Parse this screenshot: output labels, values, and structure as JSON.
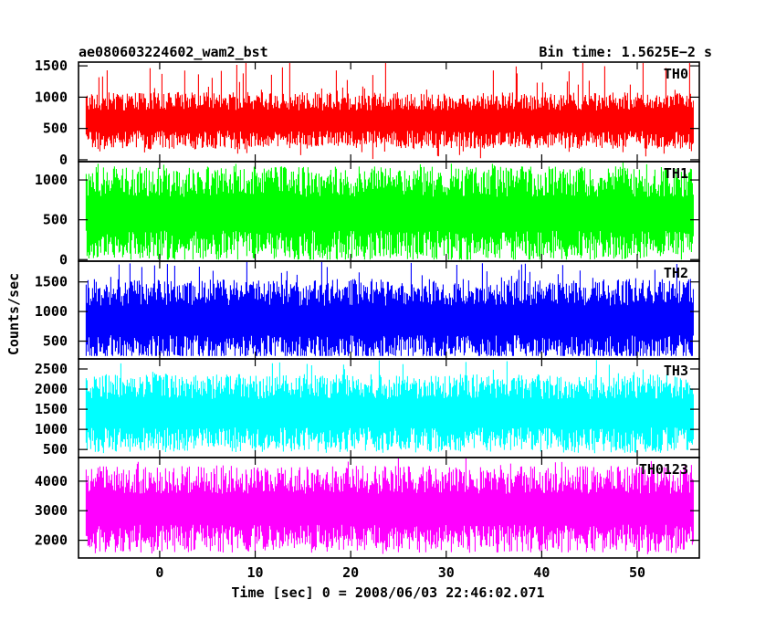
{
  "chart_data": {
    "type": "line",
    "title_left": "ae080603224602_wam2_bst",
    "title_right": "Bin time: 1.5625E−2 s",
    "ylabel": "Counts/sec",
    "xlabel": "Time [sec] 0 = 2008/06/03 22:46:02.071",
    "xlim": [
      -8.5,
      56.5
    ],
    "x_data_range": [
      -7.7,
      55.9
    ],
    "bin_time": 0.015625,
    "x_ticks": [
      0,
      10,
      20,
      30,
      40,
      50
    ],
    "x_tick_labels": [
      "0",
      "10",
      "20",
      "30",
      "40",
      "50"
    ],
    "grid": false,
    "panels": [
      {
        "name": "TH0",
        "color": "#ff0000",
        "ylim": [
          -30,
          1560
        ],
        "y_ticks": [
          0,
          500,
          1000,
          1500
        ],
        "y_tick_labels": [
          "0",
          "500",
          "1000",
          "1500"
        ],
        "typical_low": 300,
        "typical_high": 950,
        "min": 0,
        "max": 1560,
        "mean": 600
      },
      {
        "name": "TH1",
        "color": "#00ff00",
        "ylim": [
          -20,
          1230
        ],
        "y_ticks": [
          0,
          500,
          1000
        ],
        "y_tick_labels": [
          "0",
          "500",
          "1000"
        ],
        "typical_low": 150,
        "typical_high": 1000,
        "min": 0,
        "max": 1230,
        "mean": 550
      },
      {
        "name": "TH2",
        "color": "#0000ff",
        "ylim": [
          200,
          1850
        ],
        "y_ticks": [
          500,
          1000,
          1500
        ],
        "y_tick_labels": [
          "500",
          "1000",
          "1500"
        ],
        "typical_low": 350,
        "typical_high": 1350,
        "min": 250,
        "max": 1850,
        "mean": 800
      },
      {
        "name": "TH3",
        "color": "#00ffff",
        "ylim": [
          300,
          2750
        ],
        "y_ticks": [
          500,
          1000,
          1500,
          2000,
          2500
        ],
        "y_tick_labels": [
          "500",
          "1000",
          "1500",
          "2000",
          "2500"
        ],
        "typical_low": 700,
        "typical_high": 2100,
        "min": 400,
        "max": 2750,
        "mean": 1350
      },
      {
        "name": "TH0123",
        "color": "#ff00ff",
        "ylim": [
          1400,
          4800
        ],
        "y_ticks": [
          2000,
          3000,
          4000
        ],
        "y_tick_labels": [
          "2000",
          "3000",
          "4000"
        ],
        "typical_low": 2000,
        "typical_high": 4100,
        "min": 1500,
        "max": 4800,
        "mean": 3000
      }
    ]
  }
}
